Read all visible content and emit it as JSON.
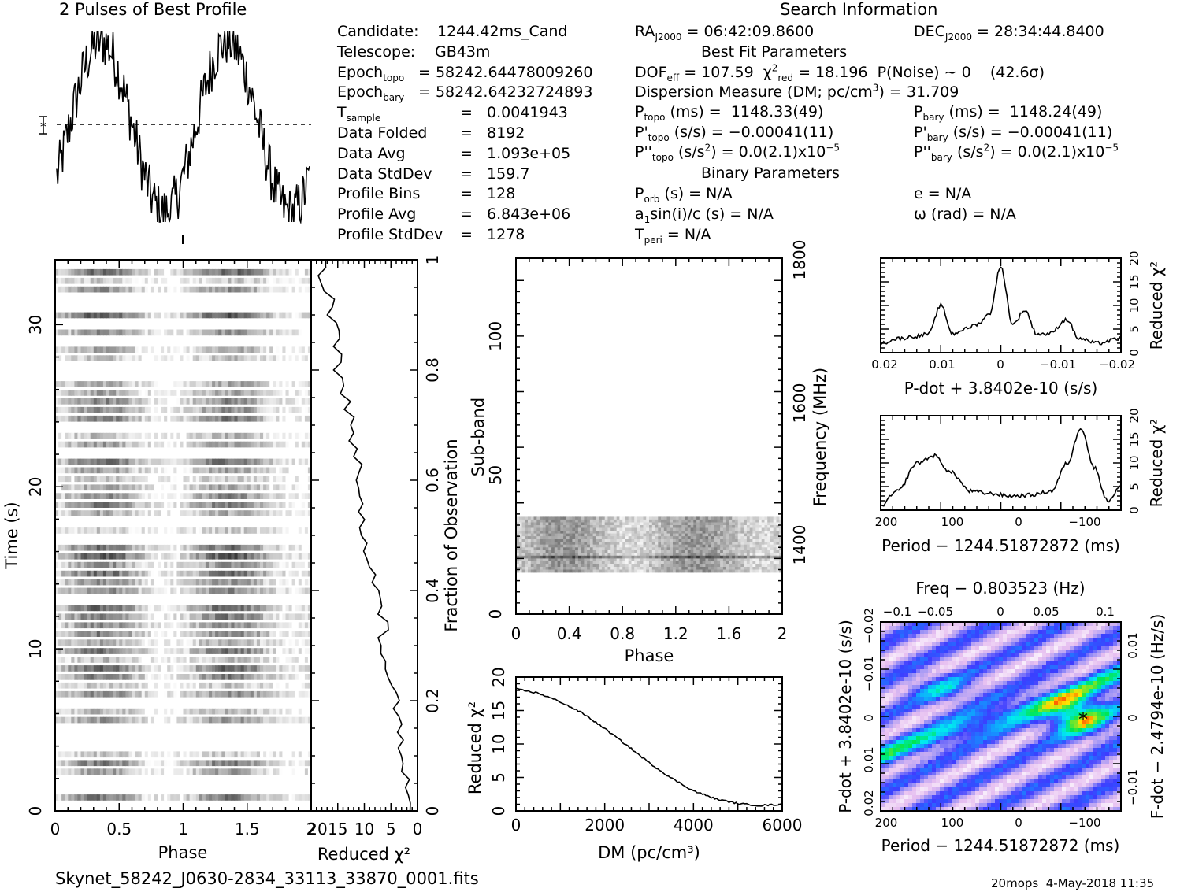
{
  "header": {
    "profile_title": "2 Pulses of Best Profile",
    "search_title": "Search Information",
    "best_fit_title": "Best Fit Parameters",
    "binary_title": "Binary Parameters",
    "footer_file": "Skynet_58242_J0630-2834_33113_33870_0001.fits",
    "footer_right": "20mops  4-May-2018 11:35"
  },
  "info_col1": [
    {
      "label": "Candidate:",
      "value": "1244.42ms_Cand"
    },
    {
      "label": "Telescope:",
      "value": "GB43m"
    },
    {
      "label": "Epoch_topo",
      "value": "= 58242.64478009260"
    },
    {
      "label": "Epoch_bary",
      "value": "= 58242.64232724893"
    },
    {
      "label": "T_sample",
      "value": "=   0.0041943"
    },
    {
      "label": "Data Folded",
      "value": "=   8192"
    },
    {
      "label": "Data Avg",
      "value": "=   1.093e+05"
    },
    {
      "label": "Data StdDev",
      "value": "=   159.7"
    },
    {
      "label": "Profile Bins",
      "value": "=   128"
    },
    {
      "label": "Profile Avg",
      "value": "=   6.843e+06"
    },
    {
      "label": "Profile StdDev",
      "value": "=   1278"
    }
  ],
  "info_col2": {
    "ra": "RA_J2000 = 06:42:09.8600",
    "dof": "DOF_eff = 107.59",
    "chi2": "χ²_red = 18.196",
    "pnoise": "P(Noise) ~ 0    (42.6σ)",
    "dm": "Dispersion Measure (DM; pc/cm³) = 31.709",
    "ptopo": "P_topo (ms) =  1148.33(49)",
    "pdtopo": "P'_topo (s/s) = −0.00041(11)",
    "pddtopo": "P''_topo (s/s²) = 0.0(2.1)x10⁻⁵",
    "porb": "P_orb (s) = N/A",
    "a1": "a₁sin(i)/c (s) = N/A",
    "tperi": "T_peri = N/A"
  },
  "info_col3": {
    "dec": "DEC_J2000 = 28:34:44.8400",
    "pbary": "P_bary (ms) =  1148.24(49)",
    "pdbary": "P'_bary (s/s) = −0.00041(11)",
    "pddbary": "P''_bary (s/s²) = 0.0(2.1)x10⁻⁵",
    "ecc": "e = N/A",
    "omega": "ω (rad) = N/A"
  },
  "chart_data": [
    {
      "type": "line",
      "title": "2 Pulses of Best Profile",
      "description": "Folded pulse profile shown twice (phase 0–2)",
      "x_range": [
        0,
        2
      ],
      "peaks_at_phase": [
        0.35,
        1.35
      ]
    },
    {
      "type": "heatmap",
      "name": "time-phase",
      "xlabel": "Phase",
      "ylabel": "Time (s)",
      "xlim": [
        0,
        2
      ],
      "ylim": [
        0,
        34
      ],
      "xticks": [
        "0",
        "0.5",
        "1",
        "1.5",
        "2"
      ],
      "yticks": [
        "0",
        "10",
        "20",
        "30"
      ]
    },
    {
      "type": "line",
      "name": "reduced-chi2-vs-fraction",
      "xlabel": "Reduced χ²",
      "ylabel": "Fraction of Observation",
      "xticks": [
        "20",
        "15",
        "10",
        "5",
        "0"
      ],
      "yticks": [
        "0",
        "0.2",
        "0.4",
        "0.6",
        "0.8",
        "1"
      ],
      "x": [
        0.5,
        2,
        3,
        4,
        5,
        6,
        7,
        8,
        9,
        10,
        11,
        12,
        13,
        14,
        15,
        16,
        17,
        18
      ],
      "y": [
        0.0,
        0.05,
        0.1,
        0.15,
        0.2,
        0.25,
        0.3,
        0.35,
        0.4,
        0.45,
        0.5,
        0.55,
        0.6,
        0.65,
        0.7,
        0.75,
        0.8,
        0.9
      ]
    },
    {
      "type": "heatmap",
      "name": "subband-phase",
      "xlabel": "Phase",
      "ylabel": "Sub-band",
      "right_label": "Frequency (MHz)",
      "xticks": [
        "0",
        "0.4",
        "0.8",
        "1.2",
        "1.6",
        "2"
      ],
      "yticks": [
        "0",
        "50",
        "100"
      ],
      "right_ticks": [
        "1400",
        "1600",
        "1800"
      ],
      "xlim": [
        0,
        2
      ],
      "ylim": [
        0,
        128
      ],
      "data_band": [
        15,
        35
      ]
    },
    {
      "type": "line",
      "name": "dm-curve",
      "xlabel": "DM (pc/cm³)",
      "ylabel": "Reduced χ²",
      "xticks": [
        "0",
        "2000",
        "4000",
        "6000"
      ],
      "yticks": [
        "0",
        "5",
        "10",
        "15",
        "20"
      ],
      "xlim": [
        0,
        6000
      ],
      "ylim": [
        0,
        20
      ],
      "x": [
        0,
        500,
        1000,
        1500,
        2000,
        2500,
        3000,
        3500,
        4000,
        4500,
        5000,
        5500,
        6000
      ],
      "y": [
        18.2,
        17.6,
        16.3,
        14.6,
        12.3,
        9.8,
        7.2,
        4.9,
        3.0,
        1.8,
        1.1,
        0.8,
        1.0
      ]
    },
    {
      "type": "line",
      "name": "pdot-curve",
      "xlabel": "P-dot + 3.8402e-10 (s/s)",
      "ylabel": "Reduced χ²",
      "xticks": [
        "0.02",
        "0.01",
        "0",
        "−0.01",
        "−0.02"
      ],
      "yticks": [
        "0",
        "5",
        "10",
        "15",
        "20"
      ],
      "xlim": [
        0.02,
        -0.02
      ],
      "ylim": [
        0,
        20
      ],
      "x": [
        0.02,
        0.017,
        0.014,
        0.012,
        0.01,
        0.008,
        0.006,
        0.004,
        0.002,
        0.0,
        -0.002,
        -0.004,
        -0.006,
        -0.008,
        -0.011,
        -0.013,
        -0.016,
        -0.02
      ],
      "y": [
        2,
        3,
        3.5,
        4,
        10,
        4,
        5,
        6,
        8,
        18,
        6,
        9,
        4,
        4,
        7,
        3,
        2,
        3
      ]
    },
    {
      "type": "line",
      "name": "period-curve",
      "xlabel": "Period − 1244.51872872 (ms)",
      "ylabel": "Reduced χ²",
      "xticks": [
        "200",
        "100",
        "0",
        "−100"
      ],
      "yticks": [
        "0",
        "5",
        "10",
        "15",
        "20"
      ],
      "xlim": [
        205,
        -155
      ],
      "ylim": [
        0,
        20
      ],
      "x": [
        205,
        180,
        150,
        125,
        100,
        70,
        40,
        10,
        -20,
        -50,
        -75,
        -95,
        -115,
        -135,
        -155
      ],
      "y": [
        1,
        4,
        10,
        11.5,
        8,
        4,
        3.5,
        3,
        3.2,
        4,
        10,
        17.5,
        9,
        2,
        5
      ]
    },
    {
      "type": "heatmap",
      "name": "pdot-period-plane",
      "title": "Freq − 0.803523 (Hz)",
      "xlabel": "Period − 1244.51872872 (ms)",
      "ylabel": "P-dot + 3.8402e-10 (s/s)",
      "right_label": "F-dot − 2.4794e-10 (Hz/s)",
      "xticks": [
        "200",
        "100",
        "0",
        "−100"
      ],
      "top_ticks": [
        "−0.1",
        "−0.05",
        "0",
        "0.05",
        "0.1"
      ],
      "yticks": [
        "−0.02",
        "−0.01",
        "0",
        "0.01",
        "0.02"
      ],
      "right_ticks": [
        "0.01",
        "0",
        "−0.01"
      ],
      "best_point": {
        "period": -95,
        "pdot": 0
      }
    }
  ],
  "colors": {
    "line": "#000000",
    "heat_low": "#ffffff",
    "heat_mid": "#2020ff",
    "heat_green": "#00e060",
    "heat_high": "#ff2000"
  }
}
